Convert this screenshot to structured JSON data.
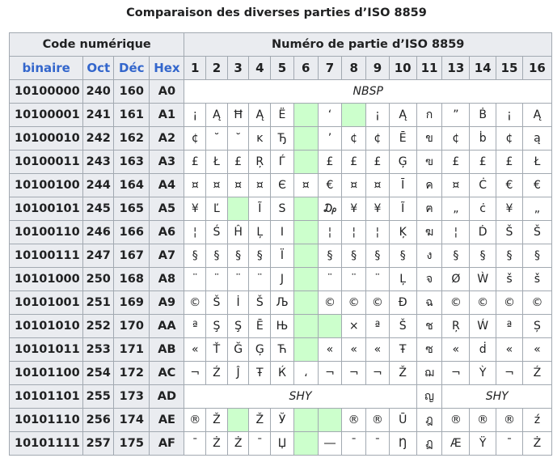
{
  "caption": "Comparaison des diverses parties d’ISO 8859",
  "header": {
    "code_group": "Code numérique",
    "part_group": "Numéro de partie d’ISO 8859",
    "sub": [
      "binaire",
      "Oct",
      "Déc",
      "Hex"
    ],
    "parts": [
      "1",
      "2",
      "3",
      "4",
      "5",
      "6",
      "7",
      "8",
      "9",
      "10",
      "11",
      "13",
      "14",
      "15",
      "16"
    ]
  },
  "rows": [
    {
      "bin": "10100000",
      "oct": "240",
      "dec": "160",
      "hex": "A0",
      "cells": [
        {
          "t": "NBSP",
          "span": 15
        }
      ]
    },
    {
      "bin": "10100001",
      "oct": "241",
      "dec": "161",
      "hex": "A1",
      "cells": [
        {
          "t": "¡"
        },
        {
          "t": "Ą"
        },
        {
          "t": "Ħ"
        },
        {
          "t": "Ą"
        },
        {
          "t": "Ё"
        },
        {
          "t": "",
          "g": 1
        },
        {
          "t": "‘"
        },
        {
          "t": "",
          "g": 1
        },
        {
          "t": "¡"
        },
        {
          "t": "Ą"
        },
        {
          "t": "ก"
        },
        {
          "t": "”"
        },
        {
          "t": "Ḃ"
        },
        {
          "t": "¡"
        },
        {
          "t": "Ą"
        }
      ]
    },
    {
      "bin": "10100010",
      "oct": "242",
      "dec": "162",
      "hex": "A2",
      "cells": [
        {
          "t": "¢"
        },
        {
          "t": "˘"
        },
        {
          "t": "˘"
        },
        {
          "t": "ĸ"
        },
        {
          "t": "Ђ"
        },
        {
          "t": "",
          "g": 1
        },
        {
          "t": "’"
        },
        {
          "t": "¢"
        },
        {
          "t": "¢"
        },
        {
          "t": "Ē"
        },
        {
          "t": "ข"
        },
        {
          "t": "¢"
        },
        {
          "t": "ḃ"
        },
        {
          "t": "¢"
        },
        {
          "t": "ą"
        }
      ]
    },
    {
      "bin": "10100011",
      "oct": "243",
      "dec": "163",
      "hex": "A3",
      "cells": [
        {
          "t": "£"
        },
        {
          "t": "Ł"
        },
        {
          "t": "£"
        },
        {
          "t": "Ŗ"
        },
        {
          "t": "Ѓ"
        },
        {
          "t": "",
          "g": 1
        },
        {
          "t": "£"
        },
        {
          "t": "£"
        },
        {
          "t": "£"
        },
        {
          "t": "Ģ"
        },
        {
          "t": "ฃ"
        },
        {
          "t": "£"
        },
        {
          "t": "£"
        },
        {
          "t": "£"
        },
        {
          "t": "Ł"
        }
      ]
    },
    {
      "bin": "10100100",
      "oct": "244",
      "dec": "164",
      "hex": "A4",
      "cells": [
        {
          "t": "¤"
        },
        {
          "t": "¤"
        },
        {
          "t": "¤"
        },
        {
          "t": "¤"
        },
        {
          "t": "Є"
        },
        {
          "t": "¤"
        },
        {
          "t": "€"
        },
        {
          "t": "¤"
        },
        {
          "t": "¤"
        },
        {
          "t": "Ī"
        },
        {
          "t": "ค"
        },
        {
          "t": "¤"
        },
        {
          "t": "Ċ"
        },
        {
          "t": "€"
        },
        {
          "t": "€"
        }
      ]
    },
    {
      "bin": "10100101",
      "oct": "245",
      "dec": "165",
      "hex": "A5",
      "cells": [
        {
          "t": "¥"
        },
        {
          "t": "Ľ"
        },
        {
          "t": "",
          "g": 1
        },
        {
          "t": "Ĩ"
        },
        {
          "t": "Ѕ"
        },
        {
          "t": "",
          "g": 1
        },
        {
          "t": "₯"
        },
        {
          "t": "¥"
        },
        {
          "t": "¥"
        },
        {
          "t": "Ĩ"
        },
        {
          "t": "ฅ"
        },
        {
          "t": "„"
        },
        {
          "t": "ċ"
        },
        {
          "t": "¥"
        },
        {
          "t": "„"
        }
      ]
    },
    {
      "bin": "10100110",
      "oct": "246",
      "dec": "166",
      "hex": "A6",
      "cells": [
        {
          "t": "¦"
        },
        {
          "t": "Ś"
        },
        {
          "t": "Ĥ"
        },
        {
          "t": "Ļ"
        },
        {
          "t": "І"
        },
        {
          "t": "",
          "g": 1
        },
        {
          "t": "¦"
        },
        {
          "t": "¦"
        },
        {
          "t": "¦"
        },
        {
          "t": "Ķ"
        },
        {
          "t": "ฆ"
        },
        {
          "t": "¦"
        },
        {
          "t": "Ḋ"
        },
        {
          "t": "Š"
        },
        {
          "t": "Š"
        }
      ]
    },
    {
      "bin": "10100111",
      "oct": "247",
      "dec": "167",
      "hex": "A7",
      "cells": [
        {
          "t": "§"
        },
        {
          "t": "§"
        },
        {
          "t": "§"
        },
        {
          "t": "§"
        },
        {
          "t": "Ї"
        },
        {
          "t": "",
          "g": 1
        },
        {
          "t": "§"
        },
        {
          "t": "§"
        },
        {
          "t": "§"
        },
        {
          "t": "§"
        },
        {
          "t": "ง"
        },
        {
          "t": "§"
        },
        {
          "t": "§"
        },
        {
          "t": "§"
        },
        {
          "t": "§"
        }
      ]
    },
    {
      "bin": "10101000",
      "oct": "250",
      "dec": "168",
      "hex": "A8",
      "cells": [
        {
          "t": "¨"
        },
        {
          "t": "¨"
        },
        {
          "t": "¨"
        },
        {
          "t": "¨"
        },
        {
          "t": "Ј"
        },
        {
          "t": "",
          "g": 1
        },
        {
          "t": "¨"
        },
        {
          "t": "¨"
        },
        {
          "t": "¨"
        },
        {
          "t": "Ļ"
        },
        {
          "t": "จ"
        },
        {
          "t": "Ø"
        },
        {
          "t": "Ẁ"
        },
        {
          "t": "š"
        },
        {
          "t": "š"
        }
      ]
    },
    {
      "bin": "10101001",
      "oct": "251",
      "dec": "169",
      "hex": "A9",
      "cells": [
        {
          "t": "©"
        },
        {
          "t": "Š"
        },
        {
          "t": "İ"
        },
        {
          "t": "Š"
        },
        {
          "t": "Љ"
        },
        {
          "t": "",
          "g": 1
        },
        {
          "t": "©"
        },
        {
          "t": "©"
        },
        {
          "t": "©"
        },
        {
          "t": "Đ"
        },
        {
          "t": "ฉ"
        },
        {
          "t": "©"
        },
        {
          "t": "©"
        },
        {
          "t": "©"
        },
        {
          "t": "©"
        }
      ]
    },
    {
      "bin": "10101010",
      "oct": "252",
      "dec": "170",
      "hex": "AA",
      "cells": [
        {
          "t": "ª"
        },
        {
          "t": "Ş"
        },
        {
          "t": "Ş"
        },
        {
          "t": "Ē"
        },
        {
          "t": "Њ"
        },
        {
          "t": "",
          "g": 1
        },
        {
          "t": "",
          "g": 1
        },
        {
          "t": "×"
        },
        {
          "t": "ª"
        },
        {
          "t": "Š"
        },
        {
          "t": "ช"
        },
        {
          "t": "Ŗ"
        },
        {
          "t": "Ẃ"
        },
        {
          "t": "ª"
        },
        {
          "t": "Ș"
        }
      ]
    },
    {
      "bin": "10101011",
      "oct": "253",
      "dec": "171",
      "hex": "AB",
      "cells": [
        {
          "t": "«"
        },
        {
          "t": "Ť"
        },
        {
          "t": "Ğ"
        },
        {
          "t": "Ģ"
        },
        {
          "t": "Ћ"
        },
        {
          "t": "",
          "g": 1
        },
        {
          "t": "«"
        },
        {
          "t": "«"
        },
        {
          "t": "«"
        },
        {
          "t": "Ŧ"
        },
        {
          "t": "ซ"
        },
        {
          "t": "«"
        },
        {
          "t": "ḋ"
        },
        {
          "t": "«"
        },
        {
          "t": "«"
        }
      ]
    },
    {
      "bin": "10101100",
      "oct": "254",
      "dec": "172",
      "hex": "AC",
      "cells": [
        {
          "t": "¬"
        },
        {
          "t": "Ź"
        },
        {
          "t": "Ĵ"
        },
        {
          "t": "Ŧ"
        },
        {
          "t": "Ќ"
        },
        {
          "t": "،"
        },
        {
          "t": "¬"
        },
        {
          "t": "¬"
        },
        {
          "t": "¬"
        },
        {
          "t": "Ž"
        },
        {
          "t": "ฌ"
        },
        {
          "t": "¬"
        },
        {
          "t": "Ỳ"
        },
        {
          "t": "¬"
        },
        {
          "t": "Ź"
        }
      ]
    },
    {
      "bin": "10101101",
      "oct": "255",
      "dec": "173",
      "hex": "AD",
      "cells": [
        {
          "t": "SHY",
          "span": 10
        },
        {
          "t": "ญ"
        },
        {
          "t": "SHY",
          "span": 4
        }
      ]
    },
    {
      "bin": "10101110",
      "oct": "256",
      "dec": "174",
      "hex": "AE",
      "cells": [
        {
          "t": "®"
        },
        {
          "t": "Ž"
        },
        {
          "t": "",
          "g": 1
        },
        {
          "t": "Ž"
        },
        {
          "t": "Ў"
        },
        {
          "t": "",
          "g": 1
        },
        {
          "t": "",
          "g": 1
        },
        {
          "t": "®"
        },
        {
          "t": "®"
        },
        {
          "t": "Ū"
        },
        {
          "t": "ฎ"
        },
        {
          "t": "®"
        },
        {
          "t": "®"
        },
        {
          "t": "®"
        },
        {
          "t": "ź"
        }
      ]
    },
    {
      "bin": "10101111",
      "oct": "257",
      "dec": "175",
      "hex": "AF",
      "cells": [
        {
          "t": "¯"
        },
        {
          "t": "Ż"
        },
        {
          "t": "Ż"
        },
        {
          "t": "¯"
        },
        {
          "t": "Џ"
        },
        {
          "t": "",
          "g": 1
        },
        {
          "t": "―"
        },
        {
          "t": "¯"
        },
        {
          "t": "¯"
        },
        {
          "t": "Ŋ"
        },
        {
          "t": "ฏ"
        },
        {
          "t": "Æ"
        },
        {
          "t": "Ÿ"
        },
        {
          "t": "¯"
        },
        {
          "t": "Ż"
        }
      ]
    }
  ]
}
